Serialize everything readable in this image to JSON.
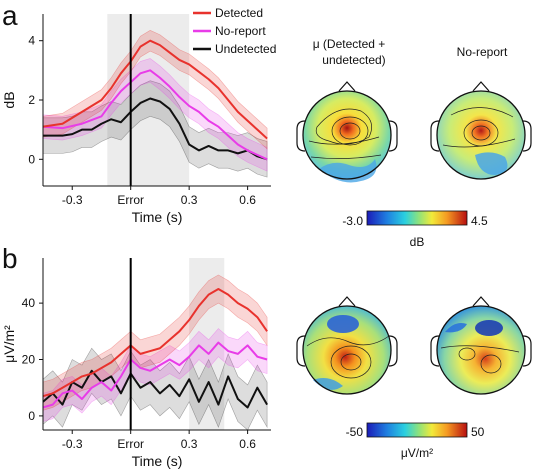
{
  "figure": {
    "panel_a_label": "a",
    "panel_b_label": "b",
    "legend": [
      "Detected",
      "No-report",
      "Undetected"
    ],
    "topo_a_title_1_line1": "μ (Detected +",
    "topo_a_title_1_line2": "undetected)",
    "topo_a_title_2": "No-report",
    "colorbar_a": {
      "min_label": "-3.0",
      "max_label": "4.5",
      "unit": "dB"
    },
    "colorbar_b": {
      "min_label": "-50",
      "max_label": "50",
      "unit": "μV/m²"
    },
    "colors": {
      "detected": "#e8322d",
      "noreport": "#e83ce8",
      "undetected": "#111111"
    }
  },
  "chart_data": [
    {
      "type": "line",
      "panel": "a",
      "xlabel": "Time (s)",
      "ylabel": "dB",
      "xlim": [
        -0.45,
        0.72
      ],
      "ylim": [
        -0.9,
        4.9
      ],
      "xticks": [
        -0.3,
        0,
        0.3,
        0.6
      ],
      "xtick_labels": [
        "-0.3",
        "Error",
        "0.3",
        "0.6"
      ],
      "yticks": [
        0,
        2,
        4
      ],
      "ytick_labels": [
        "0",
        "2",
        "4"
      ],
      "shaded_window": [
        -0.12,
        0.3
      ],
      "event_line": 0,
      "legend": "top-right",
      "series": [
        {
          "name": "Detected",
          "x": [
            -0.45,
            -0.35,
            -0.25,
            -0.15,
            -0.1,
            -0.05,
            0,
            0.05,
            0.1,
            0.15,
            0.2,
            0.25,
            0.3,
            0.35,
            0.4,
            0.45,
            0.5,
            0.55,
            0.6,
            0.65,
            0.7
          ],
          "y": [
            1.1,
            1.2,
            1.6,
            2.0,
            2.4,
            2.9,
            3.3,
            3.8,
            4.0,
            3.85,
            3.6,
            3.35,
            3.2,
            2.95,
            2.7,
            2.4,
            2.0,
            1.6,
            1.3,
            1.0,
            0.7
          ],
          "band": 0.35
        },
        {
          "name": "No-report",
          "x": [
            -0.45,
            -0.35,
            -0.25,
            -0.15,
            -0.1,
            -0.05,
            0,
            0.05,
            0.1,
            0.15,
            0.2,
            0.25,
            0.3,
            0.35,
            0.4,
            0.45,
            0.5,
            0.55,
            0.6,
            0.65,
            0.7
          ],
          "y": [
            1.1,
            1.05,
            1.2,
            1.45,
            1.9,
            2.3,
            2.6,
            2.9,
            3.0,
            2.75,
            2.45,
            2.1,
            1.8,
            1.6,
            1.3,
            1.1,
            0.8,
            0.5,
            0.3,
            0.15,
            0.0
          ],
          "band": 0.4
        },
        {
          "name": "Undetected",
          "x": [
            -0.45,
            -0.35,
            -0.3,
            -0.25,
            -0.2,
            -0.15,
            -0.1,
            -0.05,
            0,
            0.05,
            0.1,
            0.15,
            0.2,
            0.25,
            0.3,
            0.35,
            0.4,
            0.45,
            0.5,
            0.55,
            0.6,
            0.65,
            0.7
          ],
          "y": [
            0.8,
            0.8,
            0.85,
            1.0,
            1.0,
            1.2,
            1.35,
            1.25,
            1.6,
            1.9,
            2.05,
            1.95,
            1.7,
            1.2,
            0.5,
            0.3,
            0.45,
            0.3,
            0.3,
            0.2,
            0.3,
            0.1,
            0.0
          ],
          "band": 0.6
        }
      ]
    },
    {
      "type": "line",
      "panel": "b",
      "xlabel": "Time (s)",
      "ylabel": "μV/m²",
      "xlim": [
        -0.45,
        0.72
      ],
      "ylim": [
        -5,
        56
      ],
      "xticks": [
        -0.3,
        0,
        0.3,
        0.6
      ],
      "xtick_labels": [
        "-0.3",
        "Error",
        "0.3",
        "0.6"
      ],
      "yticks": [
        0,
        20,
        40
      ],
      "ytick_labels": [
        "0",
        "20",
        "40"
      ],
      "shaded_window": [
        0.3,
        0.48
      ],
      "event_line": 0,
      "series": [
        {
          "name": "Detected",
          "x": [
            -0.45,
            -0.4,
            -0.35,
            -0.3,
            -0.25,
            -0.2,
            -0.15,
            -0.1,
            -0.05,
            0,
            0.05,
            0.1,
            0.15,
            0.2,
            0.25,
            0.3,
            0.35,
            0.4,
            0.45,
            0.5,
            0.55,
            0.6,
            0.65,
            0.7
          ],
          "y": [
            7,
            8,
            10,
            12,
            14,
            15,
            17,
            19,
            22,
            25,
            22,
            23,
            24,
            27,
            30,
            34,
            39,
            43,
            45,
            43,
            40,
            38,
            35,
            30
          ],
          "band": 5
        },
        {
          "name": "No-report",
          "x": [
            -0.45,
            -0.4,
            -0.35,
            -0.3,
            -0.25,
            -0.2,
            -0.15,
            -0.1,
            -0.05,
            0,
            0.05,
            0.1,
            0.15,
            0.2,
            0.25,
            0.3,
            0.35,
            0.4,
            0.45,
            0.5,
            0.55,
            0.6,
            0.65,
            0.7
          ],
          "y": [
            3,
            4,
            8,
            9,
            6,
            10,
            12,
            9,
            14,
            20,
            17,
            16,
            18,
            20,
            18,
            21,
            25,
            22,
            26,
            23,
            22,
            25,
            21,
            20
          ],
          "band": 5
        },
        {
          "name": "Undetected",
          "x": [
            -0.45,
            -0.4,
            -0.35,
            -0.3,
            -0.25,
            -0.2,
            -0.15,
            -0.1,
            -0.05,
            0,
            0.05,
            0.1,
            0.15,
            0.2,
            0.25,
            0.3,
            0.35,
            0.4,
            0.45,
            0.5,
            0.55,
            0.6,
            0.65,
            0.7
          ],
          "y": [
            5,
            8,
            4,
            12,
            10,
            16,
            12,
            14,
            8,
            15,
            10,
            12,
            8,
            11,
            7,
            13,
            5,
            12,
            4,
            14,
            6,
            3,
            10,
            4
          ],
          "band": 8
        }
      ]
    }
  ]
}
